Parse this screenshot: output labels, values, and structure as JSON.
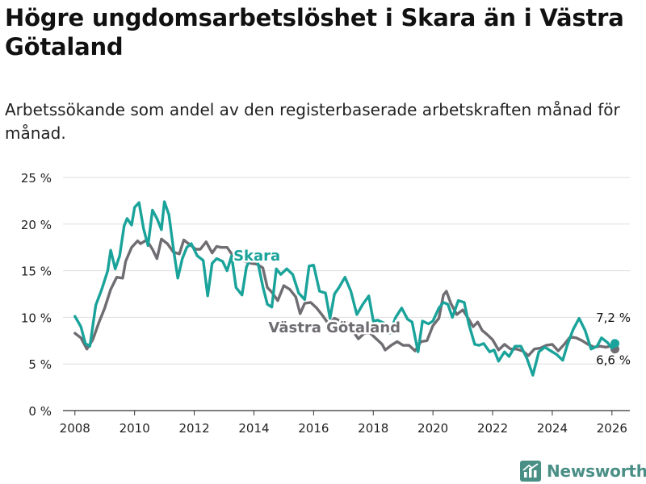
{
  "title": "Högre ungdomsarbetslöshet i Skara än i Västra Götaland",
  "subtitle": "Arbetssökande som andel av den registerbaserade arbetskraften månad för månad.",
  "brand": {
    "name": "Newsworthy",
    "icon": "newsworthy-logo-icon"
  },
  "colors": {
    "skara": "#1aa39a",
    "vastra": "#6f6c72",
    "grid": "#dddddd",
    "axis": "#333333"
  },
  "chart_data": {
    "type": "line",
    "title": "Högre ungdomsarbetslöshet i Skara än i Västra Götaland",
    "xlabel": "",
    "ylabel": "",
    "xlim": [
      2007.6,
      2026.6
    ],
    "ylim": [
      0,
      25
    ],
    "x_ticks": [
      2008,
      2010,
      2012,
      2014,
      2016,
      2018,
      2020,
      2022,
      2024,
      2026
    ],
    "x_tick_labels": [
      "2008",
      "2010",
      "2012",
      "2014",
      "2016",
      "2018",
      "2020",
      "2022",
      "2024",
      "2026"
    ],
    "y_ticks": [
      0,
      5,
      10,
      15,
      20,
      25
    ],
    "y_tick_labels": [
      "0 %",
      "5 %",
      "10 %",
      "15 %",
      "20 %",
      "25 %"
    ],
    "grid": true,
    "series": [
      {
        "name": "Västra Götaland",
        "label": "Västra Götaland",
        "end_label": "6,6 %",
        "points": [
          [
            2008.0,
            8.3
          ],
          [
            2008.2,
            7.8
          ],
          [
            2008.4,
            6.6
          ],
          [
            2008.6,
            7.6
          ],
          [
            2008.8,
            9.4
          ],
          [
            2009.0,
            11.0
          ],
          [
            2009.2,
            13.0
          ],
          [
            2009.4,
            14.3
          ],
          [
            2009.6,
            14.2
          ],
          [
            2009.7,
            16.0
          ],
          [
            2009.9,
            17.5
          ],
          [
            2010.1,
            18.2
          ],
          [
            2010.2,
            17.9
          ],
          [
            2010.4,
            18.3
          ],
          [
            2010.6,
            17.3
          ],
          [
            2010.75,
            16.3
          ],
          [
            2010.9,
            18.4
          ],
          [
            2011.1,
            17.9
          ],
          [
            2011.3,
            17.0
          ],
          [
            2011.5,
            16.8
          ],
          [
            2011.65,
            18.3
          ],
          [
            2011.85,
            17.8
          ],
          [
            2012.05,
            17.3
          ],
          [
            2012.2,
            17.3
          ],
          [
            2012.4,
            18.1
          ],
          [
            2012.6,
            16.9
          ],
          [
            2012.75,
            17.6
          ],
          [
            2012.9,
            17.5
          ],
          [
            2013.1,
            17.5
          ],
          [
            2013.3,
            16.6
          ],
          [
            2013.5,
            16.5
          ],
          [
            2013.7,
            16.0
          ],
          [
            2013.9,
            15.8
          ],
          [
            2014.1,
            15.7
          ],
          [
            2014.3,
            15.3
          ],
          [
            2014.45,
            13.2
          ],
          [
            2014.6,
            12.7
          ],
          [
            2014.8,
            11.8
          ],
          [
            2015.0,
            13.4
          ],
          [
            2015.2,
            13.0
          ],
          [
            2015.4,
            12.2
          ],
          [
            2015.55,
            10.4
          ],
          [
            2015.7,
            11.5
          ],
          [
            2015.9,
            11.6
          ],
          [
            2016.1,
            11.0
          ],
          [
            2016.3,
            10.2
          ],
          [
            2016.5,
            9.3
          ],
          [
            2016.7,
            9.9
          ],
          [
            2016.9,
            9.6
          ],
          [
            2017.1,
            9.5
          ],
          [
            2017.3,
            8.6
          ],
          [
            2017.5,
            7.7
          ],
          [
            2017.7,
            8.3
          ],
          [
            2017.9,
            8.3
          ],
          [
            2018.1,
            7.7
          ],
          [
            2018.3,
            7.1
          ],
          [
            2018.4,
            6.5
          ],
          [
            2018.6,
            7.0
          ],
          [
            2018.8,
            7.4
          ],
          [
            2019.0,
            7.0
          ],
          [
            2019.2,
            7.0
          ],
          [
            2019.4,
            6.4
          ],
          [
            2019.6,
            7.4
          ],
          [
            2019.8,
            7.5
          ],
          [
            2020.0,
            9.1
          ],
          [
            2020.2,
            9.9
          ],
          [
            2020.35,
            12.4
          ],
          [
            2020.45,
            12.8
          ],
          [
            2020.6,
            11.5
          ],
          [
            2020.8,
            10.3
          ],
          [
            2021.0,
            10.8
          ],
          [
            2021.2,
            9.8
          ],
          [
            2021.35,
            9.0
          ],
          [
            2021.5,
            9.5
          ],
          [
            2021.65,
            8.6
          ],
          [
            2021.8,
            8.2
          ],
          [
            2022.0,
            7.6
          ],
          [
            2022.2,
            6.5
          ],
          [
            2022.4,
            7.1
          ],
          [
            2022.6,
            6.6
          ],
          [
            2022.8,
            6.6
          ],
          [
            2023.0,
            6.4
          ],
          [
            2023.2,
            5.9
          ],
          [
            2023.4,
            6.6
          ],
          [
            2023.6,
            6.7
          ],
          [
            2023.8,
            7.0
          ],
          [
            2024.0,
            7.1
          ],
          [
            2024.2,
            6.4
          ],
          [
            2024.4,
            7.1
          ],
          [
            2024.6,
            7.9
          ],
          [
            2024.8,
            7.8
          ],
          [
            2025.0,
            7.5
          ],
          [
            2025.2,
            7.1
          ],
          [
            2025.4,
            6.8
          ],
          [
            2025.6,
            6.9
          ],
          [
            2025.8,
            6.8
          ],
          [
            2025.95,
            6.9
          ],
          [
            2026.1,
            6.6
          ]
        ]
      },
      {
        "name": "Skara",
        "label": "Skara",
        "end_label": "7,2 %",
        "points": [
          [
            2008.0,
            10.1
          ],
          [
            2008.2,
            9.0
          ],
          [
            2008.35,
            7.2
          ],
          [
            2008.5,
            6.9
          ],
          [
            2008.7,
            11.3
          ],
          [
            2008.9,
            13.0
          ],
          [
            2009.1,
            15.0
          ],
          [
            2009.2,
            17.2
          ],
          [
            2009.35,
            15.2
          ],
          [
            2009.5,
            16.6
          ],
          [
            2009.65,
            19.8
          ],
          [
            2009.75,
            20.6
          ],
          [
            2009.9,
            19.9
          ],
          [
            2010.0,
            21.8
          ],
          [
            2010.15,
            22.3
          ],
          [
            2010.3,
            19.5
          ],
          [
            2010.45,
            17.7
          ],
          [
            2010.6,
            21.5
          ],
          [
            2010.75,
            20.6
          ],
          [
            2010.9,
            19.4
          ],
          [
            2011.0,
            22.4
          ],
          [
            2011.15,
            21.0
          ],
          [
            2011.3,
            17.4
          ],
          [
            2011.45,
            14.2
          ],
          [
            2011.6,
            16.3
          ],
          [
            2011.75,
            17.5
          ],
          [
            2011.9,
            17.9
          ],
          [
            2012.1,
            16.6
          ],
          [
            2012.3,
            16.1
          ],
          [
            2012.45,
            12.3
          ],
          [
            2012.6,
            15.8
          ],
          [
            2012.75,
            16.3
          ],
          [
            2012.95,
            16.0
          ],
          [
            2013.1,
            15.0
          ],
          [
            2013.25,
            16.6
          ],
          [
            2013.4,
            13.2
          ],
          [
            2013.6,
            12.4
          ],
          [
            2013.75,
            15.4
          ],
          [
            2013.9,
            16.4
          ],
          [
            2014.0,
            17.0
          ],
          [
            2014.15,
            15.6
          ],
          [
            2014.3,
            13.3
          ],
          [
            2014.45,
            11.4
          ],
          [
            2014.6,
            11.1
          ],
          [
            2014.75,
            15.2
          ],
          [
            2014.9,
            14.6
          ],
          [
            2015.1,
            15.2
          ],
          [
            2015.3,
            14.6
          ],
          [
            2015.5,
            12.6
          ],
          [
            2015.7,
            11.9
          ],
          [
            2015.85,
            15.5
          ],
          [
            2016.0,
            15.6
          ],
          [
            2016.2,
            12.8
          ],
          [
            2016.4,
            12.6
          ],
          [
            2016.55,
            9.9
          ],
          [
            2016.7,
            12.5
          ],
          [
            2016.85,
            13.2
          ],
          [
            2017.05,
            14.3
          ],
          [
            2017.25,
            12.8
          ],
          [
            2017.45,
            10.3
          ],
          [
            2017.65,
            11.4
          ],
          [
            2017.85,
            12.3
          ],
          [
            2018.0,
            9.6
          ],
          [
            2018.15,
            9.7
          ],
          [
            2018.35,
            9.4
          ],
          [
            2018.55,
            8.3
          ],
          [
            2018.75,
            10.0
          ],
          [
            2018.95,
            11.0
          ],
          [
            2019.15,
            9.8
          ],
          [
            2019.3,
            9.5
          ],
          [
            2019.5,
            6.3
          ],
          [
            2019.65,
            9.6
          ],
          [
            2019.85,
            9.3
          ],
          [
            2020.0,
            9.6
          ],
          [
            2020.2,
            11.0
          ],
          [
            2020.35,
            11.6
          ],
          [
            2020.5,
            11.4
          ],
          [
            2020.65,
            10.0
          ],
          [
            2020.85,
            11.8
          ],
          [
            2021.05,
            11.6
          ],
          [
            2021.2,
            9.3
          ],
          [
            2021.4,
            7.1
          ],
          [
            2021.55,
            7.0
          ],
          [
            2021.7,
            7.2
          ],
          [
            2021.9,
            6.3
          ],
          [
            2022.05,
            6.5
          ],
          [
            2022.2,
            5.3
          ],
          [
            2022.4,
            6.3
          ],
          [
            2022.55,
            5.8
          ],
          [
            2022.75,
            6.9
          ],
          [
            2022.95,
            6.9
          ],
          [
            2023.15,
            5.6
          ],
          [
            2023.35,
            3.8
          ],
          [
            2023.55,
            6.3
          ],
          [
            2023.75,
            6.8
          ],
          [
            2023.95,
            6.4
          ],
          [
            2024.15,
            6.0
          ],
          [
            2024.35,
            5.4
          ],
          [
            2024.5,
            7.0
          ],
          [
            2024.7,
            8.7
          ],
          [
            2024.9,
            9.9
          ],
          [
            2025.1,
            8.6
          ],
          [
            2025.3,
            6.6
          ],
          [
            2025.5,
            6.9
          ],
          [
            2025.65,
            7.8
          ],
          [
            2025.85,
            7.3
          ],
          [
            2026.0,
            6.7
          ],
          [
            2026.1,
            7.2
          ]
        ]
      }
    ]
  }
}
